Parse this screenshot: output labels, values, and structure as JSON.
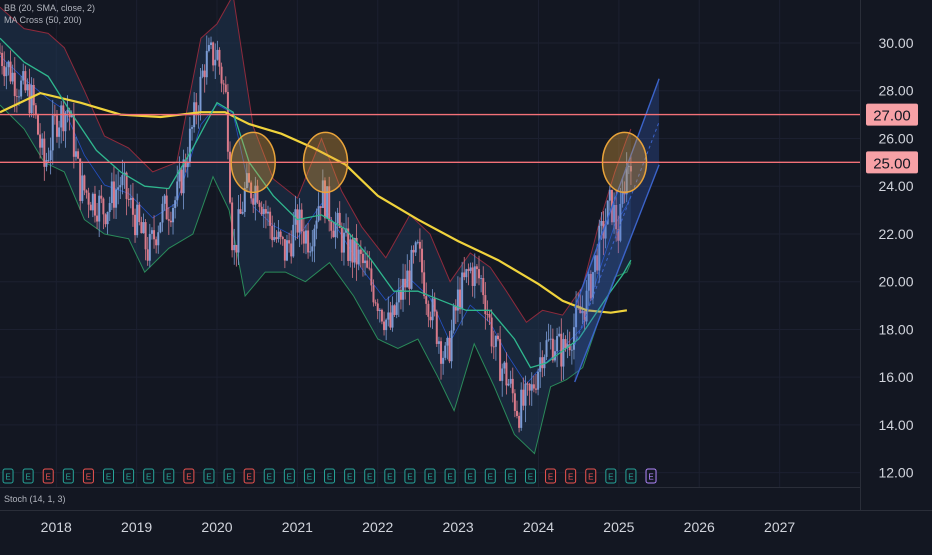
{
  "legend": {
    "bb_label": "BB (20, SMA, close, 2)",
    "ma_label": "MA Cross (50, 200)"
  },
  "stoch_label": "Stoch (14, 1, 3)",
  "colors": {
    "background": "#131722",
    "candle_up": "#7b9bd4",
    "candle_down": "#d97a8a",
    "ma50": "#2fb78e",
    "ma200": "#f0d33c",
    "bb_line": "#8e2a3c",
    "bb_lower": "#2a8a5a",
    "channel": "#3b63c9",
    "hline": "#f37178",
    "circle": "#e8a33a",
    "axis_text": "#d1d4dc"
  },
  "chart_data": {
    "type": "candlestick",
    "y_ticks": [
      "12.00",
      "14.00",
      "16.00",
      "18.00",
      "20.00",
      "22.00",
      "24.00",
      "26.00",
      "28.00",
      "30.00"
    ],
    "ylim": [
      11.4,
      31.8
    ],
    "x_ticks": [
      "2018",
      "2019",
      "2020",
      "2021",
      "2022",
      "2023",
      "2024",
      "2025",
      "2026",
      "2027"
    ],
    "xlim": [
      2017.3,
      2028.0
    ],
    "price_labels": [
      {
        "text": "27.00",
        "value": 27.0
      },
      {
        "text": "25.00",
        "value": 25.0
      }
    ],
    "horizontal_lines": [
      27.0,
      25.0
    ],
    "close_series": [
      [
        2017.3,
        29.6
      ],
      [
        2017.5,
        28.4
      ],
      [
        2017.7,
        27.6
      ],
      [
        2017.85,
        24.8
      ],
      [
        2018.0,
        26.8
      ],
      [
        2018.15,
        27.3
      ],
      [
        2018.3,
        24.0
      ],
      [
        2018.45,
        23.5
      ],
      [
        2018.6,
        23.0
      ],
      [
        2018.8,
        24.2
      ],
      [
        2019.0,
        22.5
      ],
      [
        2019.15,
        21.2
      ],
      [
        2019.3,
        22.8
      ],
      [
        2019.5,
        23.5
      ],
      [
        2019.7,
        26.5
      ],
      [
        2019.85,
        29.2
      ],
      [
        2020.0,
        29.6
      ],
      [
        2020.12,
        27.5
      ],
      [
        2020.2,
        21.0
      ],
      [
        2020.35,
        23.8
      ],
      [
        2020.5,
        24.0
      ],
      [
        2020.7,
        22.0
      ],
      [
        2020.85,
        21.2
      ],
      [
        2021.0,
        22.5
      ],
      [
        2021.15,
        21.8
      ],
      [
        2021.3,
        23.8
      ],
      [
        2021.45,
        22.5
      ],
      [
        2021.6,
        21.5
      ],
      [
        2021.8,
        20.8
      ],
      [
        2022.0,
        19.3
      ],
      [
        2022.15,
        18.0
      ],
      [
        2022.3,
        19.6
      ],
      [
        2022.5,
        21.2
      ],
      [
        2022.6,
        19.7
      ],
      [
        2022.75,
        17.8
      ],
      [
        2022.85,
        16.6
      ],
      [
        2023.0,
        19.3
      ],
      [
        2023.15,
        20.5
      ],
      [
        2023.3,
        20.0
      ],
      [
        2023.45,
        17.2
      ],
      [
        2023.6,
        16.0
      ],
      [
        2023.75,
        14.6
      ],
      [
        2023.9,
        15.2
      ],
      [
        2024.05,
        17.2
      ],
      [
        2024.2,
        17.5
      ],
      [
        2024.3,
        17.0
      ],
      [
        2024.45,
        18.2
      ],
      [
        2024.6,
        19.2
      ],
      [
        2024.75,
        21.5
      ],
      [
        2024.9,
        23.3
      ],
      [
        2025.0,
        22.0
      ],
      [
        2025.08,
        24.5
      ],
      [
        2025.15,
        25.4
      ]
    ],
    "series": [
      {
        "name": "MA 200",
        "points": [
          [
            2017.3,
            27.1
          ],
          [
            2017.8,
            27.9
          ],
          [
            2018.3,
            27.5
          ],
          [
            2018.8,
            27.0
          ],
          [
            2019.3,
            26.9
          ],
          [
            2019.8,
            27.1
          ],
          [
            2020.1,
            27.1
          ],
          [
            2020.4,
            26.6
          ],
          [
            2020.8,
            26.2
          ],
          [
            2021.2,
            25.6
          ],
          [
            2021.6,
            24.9
          ],
          [
            2022.0,
            23.6
          ],
          [
            2022.5,
            22.6
          ],
          [
            2023.0,
            21.7
          ],
          [
            2023.5,
            20.9
          ],
          [
            2024.0,
            19.9
          ],
          [
            2024.3,
            19.2
          ],
          [
            2024.6,
            18.8
          ],
          [
            2024.9,
            18.7
          ],
          [
            2025.1,
            18.8
          ]
        ]
      },
      {
        "name": "MA 50",
        "points": [
          [
            2017.3,
            30.2
          ],
          [
            2017.6,
            29.2
          ],
          [
            2017.9,
            28.6
          ],
          [
            2018.2,
            27.0
          ],
          [
            2018.5,
            25.5
          ],
          [
            2018.8,
            24.6
          ],
          [
            2019.1,
            24.0
          ],
          [
            2019.4,
            23.9
          ],
          [
            2019.7,
            25.6
          ],
          [
            2020.0,
            27.5
          ],
          [
            2020.2,
            27.1
          ],
          [
            2020.4,
            25.0
          ],
          [
            2020.7,
            23.6
          ],
          [
            2021.0,
            22.6
          ],
          [
            2021.3,
            22.8
          ],
          [
            2021.6,
            22.2
          ],
          [
            2021.9,
            21.0
          ],
          [
            2022.2,
            19.6
          ],
          [
            2022.5,
            19.6
          ],
          [
            2022.8,
            19.2
          ],
          [
            2023.1,
            18.8
          ],
          [
            2023.4,
            18.8
          ],
          [
            2023.7,
            17.6
          ],
          [
            2023.9,
            16.4
          ],
          [
            2024.1,
            16.6
          ],
          [
            2024.3,
            17.1
          ],
          [
            2024.5,
            17.6
          ],
          [
            2024.7,
            18.6
          ],
          [
            2024.9,
            19.6
          ],
          [
            2025.05,
            20.3
          ],
          [
            2025.15,
            20.9
          ]
        ]
      }
    ],
    "bollinger": {
      "upper": [
        [
          2017.3,
          31.5
        ],
        [
          2017.6,
          30.6
        ],
        [
          2017.9,
          30.4
        ],
        [
          2018.1,
          29.8
        ],
        [
          2018.35,
          28.0
        ],
        [
          2018.6,
          26.1
        ],
        [
          2018.9,
          25.6
        ],
        [
          2019.2,
          24.6
        ],
        [
          2019.5,
          25.0
        ],
        [
          2019.8,
          30.2
        ],
        [
          2020.0,
          30.8
        ],
        [
          2020.2,
          32.0
        ],
        [
          2020.45,
          26.5
        ],
        [
          2020.7,
          24.3
        ],
        [
          2021.0,
          23.5
        ],
        [
          2021.3,
          26.0
        ],
        [
          2021.55,
          23.8
        ],
        [
          2021.8,
          22.3
        ],
        [
          2022.1,
          21.0
        ],
        [
          2022.4,
          22.8
        ],
        [
          2022.65,
          22.0
        ],
        [
          2022.9,
          20.0
        ],
        [
          2023.15,
          21.2
        ],
        [
          2023.4,
          20.6
        ],
        [
          2023.6,
          19.6
        ],
        [
          2023.85,
          18.3
        ],
        [
          2024.05,
          18.8
        ],
        [
          2024.3,
          18.6
        ],
        [
          2024.55,
          19.8
        ],
        [
          2024.75,
          22.4
        ],
        [
          2024.95,
          24.6
        ],
        [
          2025.1,
          26.0
        ],
        [
          2025.15,
          26.4
        ]
      ],
      "lower": [
        [
          2017.3,
          27.4
        ],
        [
          2017.6,
          26.4
        ],
        [
          2017.85,
          25.0
        ],
        [
          2018.1,
          24.6
        ],
        [
          2018.35,
          22.6
        ],
        [
          2018.6,
          22.0
        ],
        [
          2018.9,
          21.8
        ],
        [
          2019.1,
          20.4
        ],
        [
          2019.4,
          21.4
        ],
        [
          2019.7,
          22.0
        ],
        [
          2019.95,
          24.4
        ],
        [
          2020.15,
          23.0
        ],
        [
          2020.35,
          19.4
        ],
        [
          2020.6,
          20.4
        ],
        [
          2020.85,
          20.4
        ],
        [
          2021.1,
          20.0
        ],
        [
          2021.4,
          20.8
        ],
        [
          2021.7,
          19.4
        ],
        [
          2022.0,
          17.6
        ],
        [
          2022.25,
          17.2
        ],
        [
          2022.5,
          17.6
        ],
        [
          2022.75,
          16.0
        ],
        [
          2022.95,
          14.6
        ],
        [
          2023.2,
          17.4
        ],
        [
          2023.45,
          15.6
        ],
        [
          2023.7,
          13.6
        ],
        [
          2023.95,
          12.8
        ],
        [
          2024.15,
          15.6
        ],
        [
          2024.35,
          15.9
        ],
        [
          2024.55,
          16.4
        ],
        [
          2024.75,
          18.4
        ],
        [
          2024.95,
          20.2
        ],
        [
          2025.1,
          20.4
        ],
        [
          2025.15,
          20.8
        ]
      ]
    },
    "channel": {
      "lower_line": [
        [
          2024.45,
          15.8
        ],
        [
          2025.5,
          24.9
        ]
      ],
      "upper_line": [
        [
          2024.45,
          18.9
        ],
        [
          2025.5,
          28.5
        ]
      ],
      "mid_line": [
        [
          2024.45,
          17.35
        ],
        [
          2025.5,
          26.7
        ]
      ]
    },
    "circle_markers": [
      {
        "x": 2020.45,
        "y": 25.0
      },
      {
        "x": 2021.35,
        "y": 25.0
      },
      {
        "x": 2025.07,
        "y": 25.0
      }
    ],
    "event_markers": [
      {
        "x": 2017.4,
        "label": "E",
        "kind": "green"
      },
      {
        "x": 2017.65,
        "label": "E",
        "kind": "green"
      },
      {
        "x": 2017.9,
        "label": "E",
        "kind": "red"
      },
      {
        "x": 2018.15,
        "label": "E",
        "kind": "green"
      },
      {
        "x": 2018.4,
        "label": "E",
        "kind": "red"
      },
      {
        "x": 2018.65,
        "label": "E",
        "kind": "green"
      },
      {
        "x": 2018.9,
        "label": "E",
        "kind": "green"
      },
      {
        "x": 2019.15,
        "label": "E",
        "kind": "green"
      },
      {
        "x": 2019.4,
        "label": "E",
        "kind": "green"
      },
      {
        "x": 2019.65,
        "label": "E",
        "kind": "red"
      },
      {
        "x": 2019.9,
        "label": "E",
        "kind": "green"
      },
      {
        "x": 2020.15,
        "label": "E",
        "kind": "green"
      },
      {
        "x": 2020.4,
        "label": "E",
        "kind": "red"
      },
      {
        "x": 2020.65,
        "label": "E",
        "kind": "green"
      },
      {
        "x": 2020.9,
        "label": "E",
        "kind": "green"
      },
      {
        "x": 2021.15,
        "label": "E",
        "kind": "green"
      },
      {
        "x": 2021.4,
        "label": "E",
        "kind": "green"
      },
      {
        "x": 2021.65,
        "label": "E",
        "kind": "green"
      },
      {
        "x": 2021.9,
        "label": "E",
        "kind": "green"
      },
      {
        "x": 2022.15,
        "label": "E",
        "kind": "green"
      },
      {
        "x": 2022.4,
        "label": "E",
        "kind": "green"
      },
      {
        "x": 2022.65,
        "label": "E",
        "kind": "green"
      },
      {
        "x": 2022.9,
        "label": "E",
        "kind": "green"
      },
      {
        "x": 2023.15,
        "label": "E",
        "kind": "green"
      },
      {
        "x": 2023.4,
        "label": "E",
        "kind": "green"
      },
      {
        "x": 2023.65,
        "label": "E",
        "kind": "green"
      },
      {
        "x": 2023.9,
        "label": "E",
        "kind": "green"
      },
      {
        "x": 2024.15,
        "label": "E",
        "kind": "red"
      },
      {
        "x": 2024.4,
        "label": "E",
        "kind": "red"
      },
      {
        "x": 2024.65,
        "label": "E",
        "kind": "red"
      },
      {
        "x": 2024.9,
        "label": "E",
        "kind": "green"
      },
      {
        "x": 2025.15,
        "label": "E",
        "kind": "green"
      },
      {
        "x": 2025.4,
        "label": "E",
        "kind": "purple"
      }
    ]
  }
}
